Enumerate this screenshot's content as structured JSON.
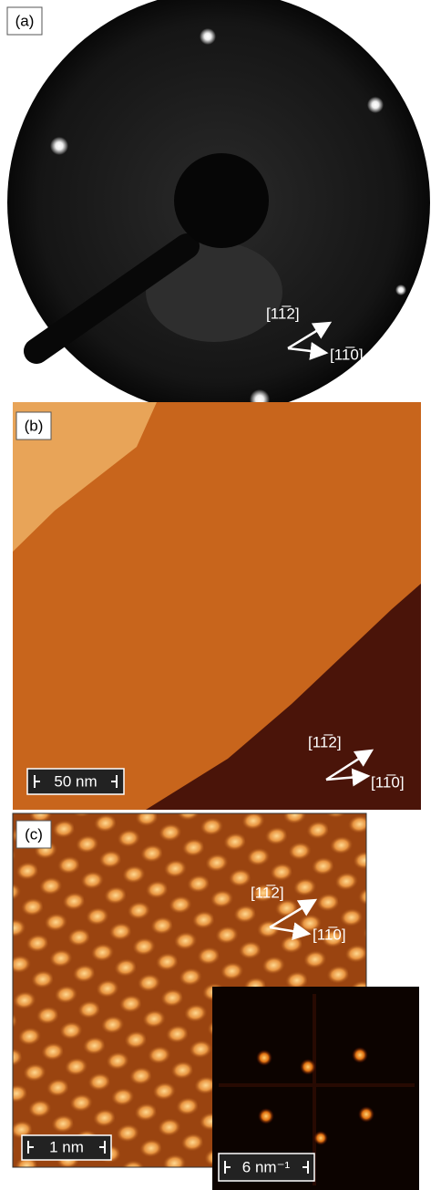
{
  "panels": [
    {
      "label": "(a)",
      "directions": [
        "[11̅2]",
        "[11̅0]"
      ]
    },
    {
      "label": "(b)",
      "directions": [
        "[11̅2]",
        "[11̅0]"
      ],
      "scale_bar": "50 nm"
    },
    {
      "label": "(c)",
      "directions": [
        "[11̅2]",
        "[11̅0]"
      ],
      "scale_bar": "1 nm",
      "inset_scale_bar": "6 nm⁻¹"
    }
  ]
}
